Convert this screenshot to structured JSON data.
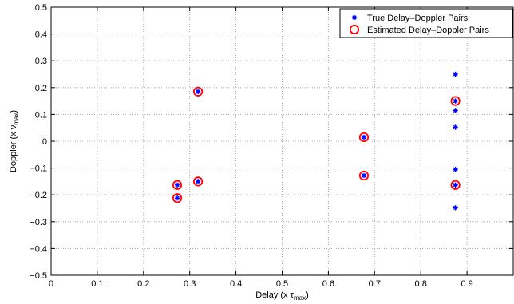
{
  "chart_data": {
    "type": "scatter",
    "title": "",
    "xlabel_main": "Delay (x τ",
    "xlabel_sub": "max",
    "xlabel_close": ")",
    "ylabel_main": "Doppler (x ν",
    "ylabel_sub": "max",
    "ylabel_close": ")",
    "xlim": [
      0,
      1
    ],
    "ylim": [
      -0.5,
      0.5
    ],
    "xticks": [
      0,
      0.1,
      0.2,
      0.3,
      0.4,
      0.5,
      0.6,
      0.7,
      0.8,
      0.9
    ],
    "yticks": [
      -0.5,
      -0.4,
      -0.3,
      -0.2,
      -0.1,
      0,
      0.1,
      0.2,
      0.3,
      0.4,
      0.5
    ],
    "grid": true,
    "legend_position": "top-right",
    "series": [
      {
        "name": "True Delay–Doppler Pairs",
        "marker": "asterisk",
        "color": "#0000ff",
        "points": [
          [
            0.273,
            -0.163
          ],
          [
            0.273,
            -0.212
          ],
          [
            0.318,
            0.185
          ],
          [
            0.318,
            -0.15
          ],
          [
            0.677,
            0.015
          ],
          [
            0.677,
            -0.128
          ],
          [
            0.875,
            0.25
          ],
          [
            0.875,
            0.15
          ],
          [
            0.875,
            0.115
          ],
          [
            0.875,
            0.052
          ],
          [
            0.875,
            -0.105
          ],
          [
            0.875,
            -0.163
          ],
          [
            0.875,
            -0.248
          ]
        ]
      },
      {
        "name": "Estimated Delay–Doppler Pairs",
        "marker": "circle",
        "color": "#ff0000",
        "points": [
          [
            0.273,
            -0.163
          ],
          [
            0.273,
            -0.212
          ],
          [
            0.318,
            0.185
          ],
          [
            0.318,
            -0.15
          ],
          [
            0.677,
            0.015
          ],
          [
            0.677,
            -0.128
          ],
          [
            0.875,
            0.15
          ],
          [
            0.875,
            -0.163
          ]
        ]
      }
    ]
  }
}
